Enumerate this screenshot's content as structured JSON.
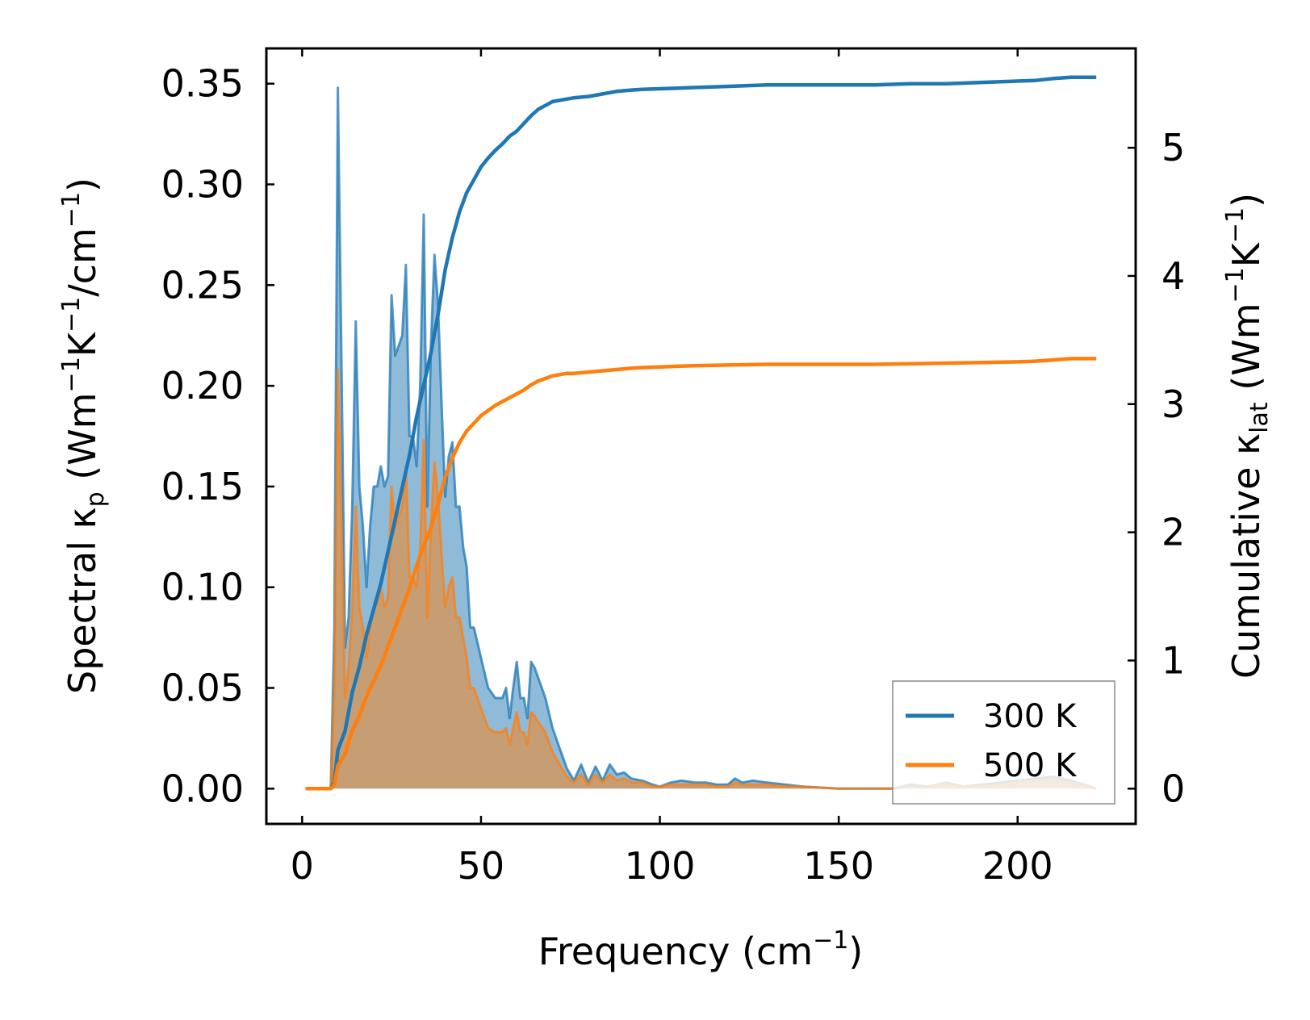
{
  "chart_data": {
    "type": "line",
    "x_axis": {
      "label_main": "Frequency (cm",
      "label_sup": "−1",
      "label_end": ")",
      "lim": [
        -10,
        233
      ],
      "ticks": [
        0,
        50,
        100,
        150,
        200
      ],
      "tick_labels": [
        "0",
        "50",
        "100",
        "150",
        "200"
      ]
    },
    "y_left": {
      "label_parts": [
        "Spectral κ",
        "p",
        " (Wm",
        "−1",
        "K",
        "−1",
        "/cm",
        "−1",
        ")"
      ],
      "lim": [
        -0.0175,
        0.3675
      ],
      "ticks": [
        0,
        0.05,
        0.1,
        0.15,
        0.2,
        0.25,
        0.3,
        0.35
      ],
      "tick_labels": [
        "0.00",
        "0.05",
        "0.10",
        "0.15",
        "0.20",
        "0.25",
        "0.30",
        "0.35"
      ]
    },
    "y_right": {
      "label_parts": [
        "Cumulative κ",
        "lat",
        " (Wm",
        "−1",
        "K",
        "−1",
        ")"
      ],
      "lim": [
        -0.275,
        5.775
      ],
      "ticks": [
        0,
        1,
        2,
        3,
        4,
        5
      ],
      "tick_labels": [
        "0",
        "1",
        "2",
        "3",
        "4",
        "5"
      ]
    },
    "legend": {
      "position": "lower-right",
      "entries": [
        "300 K",
        "500 K"
      ]
    },
    "series": [
      {
        "name": "300 K",
        "color": "#1f77b4",
        "spectral": {
          "x": [
            1,
            8,
            9,
            10,
            11,
            12,
            13,
            14,
            15,
            16,
            17,
            18,
            19,
            20,
            21,
            22,
            23,
            24,
            25,
            26,
            27,
            28,
            29,
            30,
            31,
            32,
            33,
            34,
            35,
            36,
            37,
            38,
            39,
            40,
            41,
            42,
            43,
            44,
            45,
            46,
            47,
            48,
            50,
            52,
            54,
            56,
            57,
            58,
            59,
            60,
            61,
            62,
            63,
            64,
            65,
            66,
            68,
            70,
            72,
            74,
            76,
            78,
            80,
            82,
            84,
            86,
            88,
            90,
            92,
            95,
            98,
            100,
            103,
            106,
            110,
            113,
            116,
            119,
            121,
            123,
            126,
            130,
            135,
            140,
            150,
            165,
            170,
            175,
            180,
            185,
            190,
            195,
            200,
            205,
            210,
            215,
            222
          ],
          "y": [
            0,
            0,
            0.08,
            0.348,
            0.21,
            0.07,
            0.085,
            0.14,
            0.232,
            0.15,
            0.13,
            0.1,
            0.13,
            0.15,
            0.15,
            0.16,
            0.15,
            0.155,
            0.245,
            0.215,
            0.22,
            0.225,
            0.26,
            0.175,
            0.175,
            0.16,
            0.2,
            0.285,
            0.14,
            0.22,
            0.265,
            0.24,
            0.19,
            0.145,
            0.165,
            0.172,
            0.14,
            0.14,
            0.12,
            0.11,
            0.08,
            0.08,
            0.065,
            0.05,
            0.045,
            0.045,
            0.05,
            0.035,
            0.05,
            0.063,
            0.045,
            0.045,
            0.035,
            0.063,
            0.06,
            0.055,
            0.045,
            0.03,
            0.02,
            0.01,
            0.004,
            0.012,
            0.003,
            0.011,
            0.004,
            0.012,
            0.007,
            0.008,
            0.005,
            0.004,
            0.002,
            0.001,
            0.003,
            0.004,
            0.003,
            0.003,
            0.002,
            0.002,
            0.005,
            0.003,
            0.004,
            0.003,
            0.002,
            0.001,
            0,
            0,
            0.002,
            0.001,
            0.003,
            0.001,
            0.002,
            0.003,
            0.004,
            0.005,
            0.006,
            0.004,
            0
          ]
        },
        "cumulative": {
          "x": [
            1,
            8,
            9,
            10,
            12,
            14,
            16,
            18,
            20,
            22,
            24,
            26,
            28,
            30,
            32,
            34,
            36,
            38,
            40,
            42,
            44,
            46,
            48,
            50,
            52,
            54,
            56,
            58,
            60,
            62,
            64,
            66,
            68,
            70,
            72,
            74,
            76,
            78,
            80,
            82,
            84,
            86,
            88,
            90,
            92,
            95,
            100,
            105,
            110,
            120,
            130,
            140,
            150,
            160,
            170,
            180,
            190,
            200,
            205,
            210,
            215,
            222
          ],
          "y": [
            0,
            0,
            0.05,
            0.3,
            0.45,
            0.75,
            0.95,
            1.2,
            1.4,
            1.6,
            1.85,
            2.1,
            2.35,
            2.6,
            2.9,
            3.15,
            3.4,
            3.7,
            4.05,
            4.3,
            4.5,
            4.65,
            4.75,
            4.85,
            4.92,
            4.98,
            5.03,
            5.09,
            5.13,
            5.19,
            5.25,
            5.3,
            5.33,
            5.36,
            5.37,
            5.38,
            5.39,
            5.395,
            5.4,
            5.41,
            5.42,
            5.43,
            5.44,
            5.445,
            5.45,
            5.455,
            5.46,
            5.465,
            5.47,
            5.48,
            5.49,
            5.49,
            5.49,
            5.49,
            5.5,
            5.5,
            5.51,
            5.52,
            5.525,
            5.54,
            5.55,
            5.55
          ]
        }
      },
      {
        "name": "500 K",
        "color": "#ff7f0e",
        "spectral": {
          "x": [
            1,
            8,
            9,
            10,
            11,
            12,
            13,
            14,
            15,
            16,
            17,
            18,
            19,
            20,
            21,
            22,
            23,
            24,
            25,
            26,
            27,
            28,
            29,
            30,
            31,
            32,
            33,
            34,
            35,
            36,
            37,
            38,
            39,
            40,
            41,
            42,
            43,
            44,
            45,
            46,
            47,
            48,
            50,
            52,
            54,
            56,
            57,
            58,
            59,
            60,
            61,
            62,
            63,
            64,
            65,
            66,
            68,
            70,
            72,
            74,
            76,
            78,
            80,
            82,
            84,
            86,
            88,
            90,
            92,
            95,
            98,
            100,
            103,
            106,
            110,
            113,
            116,
            119,
            121,
            123,
            126,
            130,
            135,
            140,
            150,
            165,
            170,
            175,
            180,
            185,
            190,
            195,
            200,
            205,
            210,
            215,
            222
          ],
          "y": [
            0,
            0,
            0.05,
            0.208,
            0.13,
            0.045,
            0.06,
            0.09,
            0.14,
            0.09,
            0.08,
            0.065,
            0.08,
            0.09,
            0.092,
            0.1,
            0.09,
            0.095,
            0.15,
            0.13,
            0.135,
            0.14,
            0.16,
            0.105,
            0.105,
            0.1,
            0.12,
            0.173,
            0.085,
            0.13,
            0.162,
            0.145,
            0.115,
            0.09,
            0.1,
            0.105,
            0.085,
            0.085,
            0.075,
            0.065,
            0.05,
            0.05,
            0.04,
            0.03,
            0.028,
            0.028,
            0.03,
            0.022,
            0.03,
            0.038,
            0.028,
            0.028,
            0.022,
            0.038,
            0.036,
            0.033,
            0.028,
            0.018,
            0.012,
            0.006,
            0.003,
            0.007,
            0.002,
            0.007,
            0.003,
            0.007,
            0.004,
            0.005,
            0.003,
            0.003,
            0.001,
            0.001,
            0.002,
            0.002,
            0.002,
            0.002,
            0.001,
            0.001,
            0.003,
            0.002,
            0.002,
            0.002,
            0.001,
            0.001,
            0,
            0,
            0.001,
            0.001,
            0.002,
            0.001,
            0.001,
            0.002,
            0.003,
            0.004,
            0.005,
            0.003,
            0
          ]
        },
        "cumulative": {
          "x": [
            1,
            8,
            9,
            10,
            12,
            14,
            16,
            18,
            20,
            22,
            24,
            26,
            28,
            30,
            32,
            34,
            36,
            38,
            40,
            42,
            44,
            46,
            48,
            50,
            52,
            54,
            56,
            58,
            60,
            62,
            64,
            66,
            68,
            70,
            72,
            74,
            76,
            78,
            80,
            82,
            84,
            86,
            88,
            90,
            92,
            95,
            100,
            105,
            110,
            120,
            130,
            140,
            150,
            160,
            170,
            180,
            190,
            200,
            205,
            210,
            215,
            222
          ],
          "y": [
            0,
            0,
            0.03,
            0.18,
            0.27,
            0.45,
            0.57,
            0.72,
            0.84,
            0.96,
            1.11,
            1.26,
            1.41,
            1.56,
            1.74,
            1.89,
            2.04,
            2.22,
            2.43,
            2.58,
            2.7,
            2.79,
            2.85,
            2.91,
            2.95,
            2.99,
            3.02,
            3.05,
            3.08,
            3.11,
            3.15,
            3.18,
            3.2,
            3.22,
            3.23,
            3.24,
            3.24,
            3.245,
            3.25,
            3.255,
            3.26,
            3.265,
            3.27,
            3.275,
            3.28,
            3.285,
            3.29,
            3.295,
            3.3,
            3.305,
            3.31,
            3.31,
            3.31,
            3.31,
            3.315,
            3.32,
            3.325,
            3.33,
            3.335,
            3.345,
            3.355,
            3.355
          ]
        }
      }
    ]
  }
}
